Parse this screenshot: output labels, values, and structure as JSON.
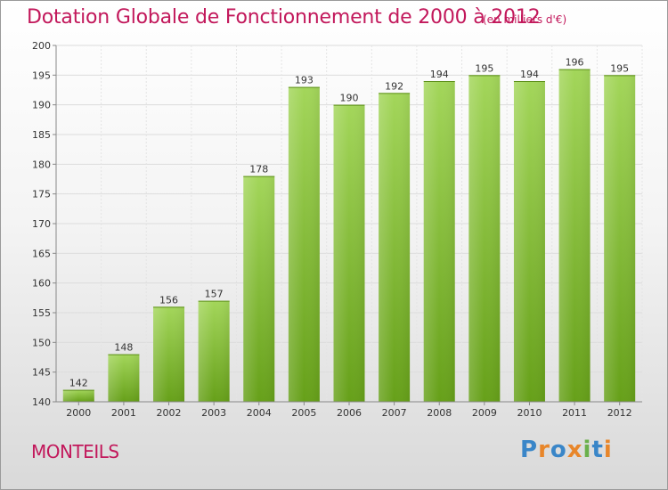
{
  "header": {
    "title": "Dotation Globale de Fonctionnement de 2000 à 2012",
    "unit": "(en milliers d'€)"
  },
  "footer": {
    "place": "MONTEILS",
    "logo": "Proxiti"
  },
  "colors": {
    "accent": "#c2185b",
    "bar_light": "#a3d65a",
    "bar_dark": "#6aa41c",
    "grid": "#dddddd"
  },
  "chart_data": {
    "type": "bar",
    "categories": [
      "2000",
      "2001",
      "2002",
      "2003",
      "2004",
      "2005",
      "2006",
      "2007",
      "2008",
      "2009",
      "2010",
      "2011",
      "2012"
    ],
    "values": [
      142,
      148,
      156,
      157,
      178,
      193,
      190,
      192,
      194,
      195,
      194,
      196,
      195
    ],
    "ylim": [
      140,
      200
    ],
    "yticks": [
      140,
      145,
      150,
      155,
      160,
      165,
      170,
      175,
      180,
      185,
      190,
      195,
      200
    ],
    "grid": true
  }
}
